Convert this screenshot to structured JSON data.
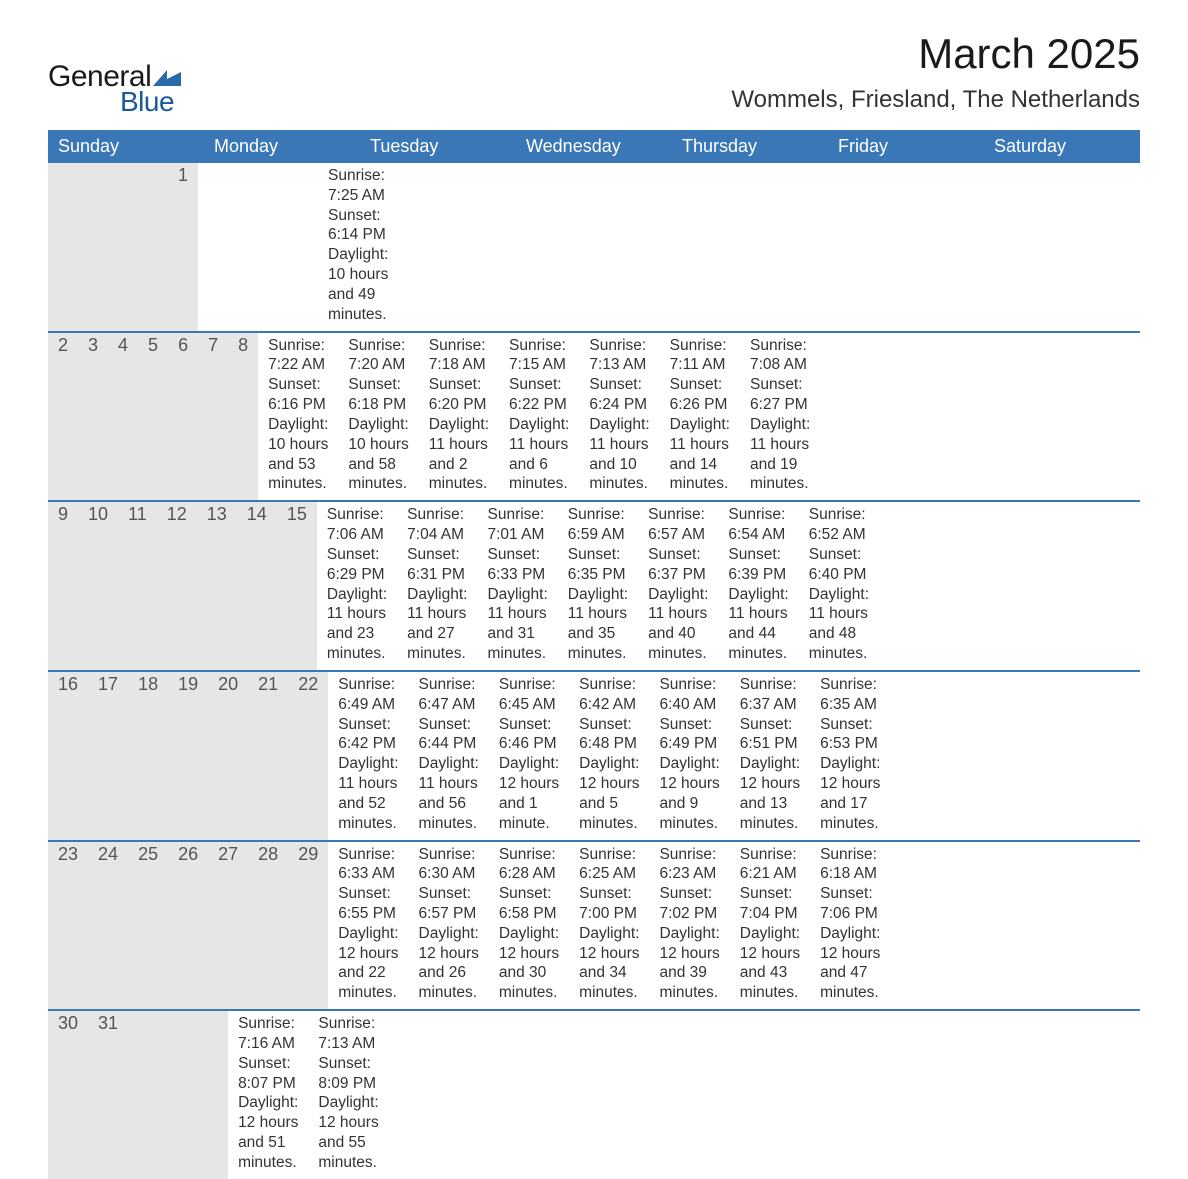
{
  "logo": {
    "text_general": "General",
    "text_blue": "Blue",
    "shape_color": "#2a6aa8"
  },
  "title": "March 2025",
  "location": "Wommels, Friesland, The Netherlands",
  "colors": {
    "header_bg": "#3a77b7",
    "header_text": "#ffffff",
    "daynum_bg": "#e6e6e6",
    "daynum_text": "#555555",
    "body_text": "#333333",
    "week_border": "#3a77b7",
    "page_bg": "#ffffff"
  },
  "typography": {
    "month_title_pt": 42,
    "location_pt": 24,
    "day_header_pt": 18,
    "daynum_pt": 18,
    "cell_pt": 15.5,
    "font_family": "Arial"
  },
  "day_names": [
    "Sunday",
    "Monday",
    "Tuesday",
    "Wednesday",
    "Thursday",
    "Friday",
    "Saturday"
  ],
  "weeks": [
    [
      {
        "day": "",
        "sunrise": "",
        "sunset": "",
        "daylight1": "",
        "daylight2": ""
      },
      {
        "day": "",
        "sunrise": "",
        "sunset": "",
        "daylight1": "",
        "daylight2": ""
      },
      {
        "day": "",
        "sunrise": "",
        "sunset": "",
        "daylight1": "",
        "daylight2": ""
      },
      {
        "day": "",
        "sunrise": "",
        "sunset": "",
        "daylight1": "",
        "daylight2": ""
      },
      {
        "day": "",
        "sunrise": "",
        "sunset": "",
        "daylight1": "",
        "daylight2": ""
      },
      {
        "day": "",
        "sunrise": "",
        "sunset": "",
        "daylight1": "",
        "daylight2": ""
      },
      {
        "day": "1",
        "sunrise": "Sunrise: 7:25 AM",
        "sunset": "Sunset: 6:14 PM",
        "daylight1": "Daylight: 10 hours",
        "daylight2": "and 49 minutes."
      }
    ],
    [
      {
        "day": "2",
        "sunrise": "Sunrise: 7:22 AM",
        "sunset": "Sunset: 6:16 PM",
        "daylight1": "Daylight: 10 hours",
        "daylight2": "and 53 minutes."
      },
      {
        "day": "3",
        "sunrise": "Sunrise: 7:20 AM",
        "sunset": "Sunset: 6:18 PM",
        "daylight1": "Daylight: 10 hours",
        "daylight2": "and 58 minutes."
      },
      {
        "day": "4",
        "sunrise": "Sunrise: 7:18 AM",
        "sunset": "Sunset: 6:20 PM",
        "daylight1": "Daylight: 11 hours",
        "daylight2": "and 2 minutes."
      },
      {
        "day": "5",
        "sunrise": "Sunrise: 7:15 AM",
        "sunset": "Sunset: 6:22 PM",
        "daylight1": "Daylight: 11 hours",
        "daylight2": "and 6 minutes."
      },
      {
        "day": "6",
        "sunrise": "Sunrise: 7:13 AM",
        "sunset": "Sunset: 6:24 PM",
        "daylight1": "Daylight: 11 hours",
        "daylight2": "and 10 minutes."
      },
      {
        "day": "7",
        "sunrise": "Sunrise: 7:11 AM",
        "sunset": "Sunset: 6:26 PM",
        "daylight1": "Daylight: 11 hours",
        "daylight2": "and 14 minutes."
      },
      {
        "day": "8",
        "sunrise": "Sunrise: 7:08 AM",
        "sunset": "Sunset: 6:27 PM",
        "daylight1": "Daylight: 11 hours",
        "daylight2": "and 19 minutes."
      }
    ],
    [
      {
        "day": "9",
        "sunrise": "Sunrise: 7:06 AM",
        "sunset": "Sunset: 6:29 PM",
        "daylight1": "Daylight: 11 hours",
        "daylight2": "and 23 minutes."
      },
      {
        "day": "10",
        "sunrise": "Sunrise: 7:04 AM",
        "sunset": "Sunset: 6:31 PM",
        "daylight1": "Daylight: 11 hours",
        "daylight2": "and 27 minutes."
      },
      {
        "day": "11",
        "sunrise": "Sunrise: 7:01 AM",
        "sunset": "Sunset: 6:33 PM",
        "daylight1": "Daylight: 11 hours",
        "daylight2": "and 31 minutes."
      },
      {
        "day": "12",
        "sunrise": "Sunrise: 6:59 AM",
        "sunset": "Sunset: 6:35 PM",
        "daylight1": "Daylight: 11 hours",
        "daylight2": "and 35 minutes."
      },
      {
        "day": "13",
        "sunrise": "Sunrise: 6:57 AM",
        "sunset": "Sunset: 6:37 PM",
        "daylight1": "Daylight: 11 hours",
        "daylight2": "and 40 minutes."
      },
      {
        "day": "14",
        "sunrise": "Sunrise: 6:54 AM",
        "sunset": "Sunset: 6:39 PM",
        "daylight1": "Daylight: 11 hours",
        "daylight2": "and 44 minutes."
      },
      {
        "day": "15",
        "sunrise": "Sunrise: 6:52 AM",
        "sunset": "Sunset: 6:40 PM",
        "daylight1": "Daylight: 11 hours",
        "daylight2": "and 48 minutes."
      }
    ],
    [
      {
        "day": "16",
        "sunrise": "Sunrise: 6:49 AM",
        "sunset": "Sunset: 6:42 PM",
        "daylight1": "Daylight: 11 hours",
        "daylight2": "and 52 minutes."
      },
      {
        "day": "17",
        "sunrise": "Sunrise: 6:47 AM",
        "sunset": "Sunset: 6:44 PM",
        "daylight1": "Daylight: 11 hours",
        "daylight2": "and 56 minutes."
      },
      {
        "day": "18",
        "sunrise": "Sunrise: 6:45 AM",
        "sunset": "Sunset: 6:46 PM",
        "daylight1": "Daylight: 12 hours",
        "daylight2": "and 1 minute."
      },
      {
        "day": "19",
        "sunrise": "Sunrise: 6:42 AM",
        "sunset": "Sunset: 6:48 PM",
        "daylight1": "Daylight: 12 hours",
        "daylight2": "and 5 minutes."
      },
      {
        "day": "20",
        "sunrise": "Sunrise: 6:40 AM",
        "sunset": "Sunset: 6:49 PM",
        "daylight1": "Daylight: 12 hours",
        "daylight2": "and 9 minutes."
      },
      {
        "day": "21",
        "sunrise": "Sunrise: 6:37 AM",
        "sunset": "Sunset: 6:51 PM",
        "daylight1": "Daylight: 12 hours",
        "daylight2": "and 13 minutes."
      },
      {
        "day": "22",
        "sunrise": "Sunrise: 6:35 AM",
        "sunset": "Sunset: 6:53 PM",
        "daylight1": "Daylight: 12 hours",
        "daylight2": "and 17 minutes."
      }
    ],
    [
      {
        "day": "23",
        "sunrise": "Sunrise: 6:33 AM",
        "sunset": "Sunset: 6:55 PM",
        "daylight1": "Daylight: 12 hours",
        "daylight2": "and 22 minutes."
      },
      {
        "day": "24",
        "sunrise": "Sunrise: 6:30 AM",
        "sunset": "Sunset: 6:57 PM",
        "daylight1": "Daylight: 12 hours",
        "daylight2": "and 26 minutes."
      },
      {
        "day": "25",
        "sunrise": "Sunrise: 6:28 AM",
        "sunset": "Sunset: 6:58 PM",
        "daylight1": "Daylight: 12 hours",
        "daylight2": "and 30 minutes."
      },
      {
        "day": "26",
        "sunrise": "Sunrise: 6:25 AM",
        "sunset": "Sunset: 7:00 PM",
        "daylight1": "Daylight: 12 hours",
        "daylight2": "and 34 minutes."
      },
      {
        "day": "27",
        "sunrise": "Sunrise: 6:23 AM",
        "sunset": "Sunset: 7:02 PM",
        "daylight1": "Daylight: 12 hours",
        "daylight2": "and 39 minutes."
      },
      {
        "day": "28",
        "sunrise": "Sunrise: 6:21 AM",
        "sunset": "Sunset: 7:04 PM",
        "daylight1": "Daylight: 12 hours",
        "daylight2": "and 43 minutes."
      },
      {
        "day": "29",
        "sunrise": "Sunrise: 6:18 AM",
        "sunset": "Sunset: 7:06 PM",
        "daylight1": "Daylight: 12 hours",
        "daylight2": "and 47 minutes."
      }
    ],
    [
      {
        "day": "30",
        "sunrise": "Sunrise: 7:16 AM",
        "sunset": "Sunset: 8:07 PM",
        "daylight1": "Daylight: 12 hours",
        "daylight2": "and 51 minutes."
      },
      {
        "day": "31",
        "sunrise": "Sunrise: 7:13 AM",
        "sunset": "Sunset: 8:09 PM",
        "daylight1": "Daylight: 12 hours",
        "daylight2": "and 55 minutes."
      },
      {
        "day": "",
        "sunrise": "",
        "sunset": "",
        "daylight1": "",
        "daylight2": ""
      },
      {
        "day": "",
        "sunrise": "",
        "sunset": "",
        "daylight1": "",
        "daylight2": ""
      },
      {
        "day": "",
        "sunrise": "",
        "sunset": "",
        "daylight1": "",
        "daylight2": ""
      },
      {
        "day": "",
        "sunrise": "",
        "sunset": "",
        "daylight1": "",
        "daylight2": ""
      },
      {
        "day": "",
        "sunrise": "",
        "sunset": "",
        "daylight1": "",
        "daylight2": ""
      }
    ]
  ]
}
